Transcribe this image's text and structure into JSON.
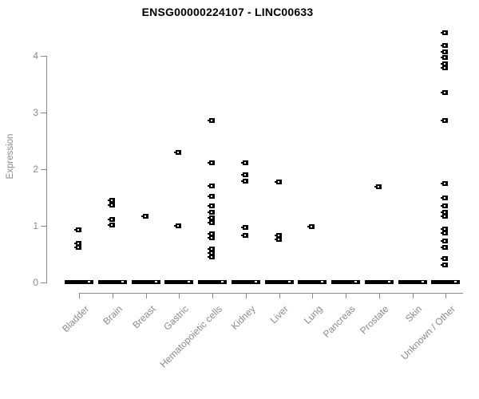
{
  "title": "ENSG00000224107 - LINC00633",
  "colors": {
    "point": "#000000",
    "axis": "#8a8a8a",
    "tick_label": "#8a8a8a",
    "title": "#000000",
    "background": "#ffffff"
  },
  "chart_data": {
    "type": "scatter",
    "title": "ENSG00000224107 - LINC00633",
    "xlabel": "",
    "ylabel": "Expression",
    "ylim": [
      0,
      4.5
    ],
    "y_ticks": [
      0,
      1,
      2,
      3,
      4
    ],
    "grid": false,
    "legend": false,
    "marker": "small-black-square-with-white-slot",
    "zero_note": "every category has a dense cluster of points at expression 0 rendered as a thick black dash",
    "categories": [
      "Bladder",
      "Brain",
      "Breast",
      "Gastric",
      "Hematopoietic cells",
      "Kidney",
      "Liver",
      "Lung",
      "Pancreas",
      "Prostate",
      "Skin",
      "Unknown / Other"
    ],
    "points": [
      {
        "category": "Bladder",
        "zero_cluster": true,
        "values": [
          0.93,
          0.69,
          0.63
        ]
      },
      {
        "category": "Brain",
        "zero_cluster": true,
        "values": [
          1.46,
          1.37,
          1.11,
          1.02
        ]
      },
      {
        "category": "Breast",
        "zero_cluster": true,
        "values": [
          1.18
        ]
      },
      {
        "category": "Gastric",
        "zero_cluster": true,
        "values": [
          2.3,
          1.0
        ]
      },
      {
        "category": "Hematopoietic cells",
        "zero_cluster": true,
        "values": [
          2.86,
          2.12,
          1.71,
          1.53,
          1.35,
          1.25,
          1.14,
          1.06,
          0.87,
          0.79,
          0.59,
          0.52,
          0.45
        ]
      },
      {
        "category": "Kidney",
        "zero_cluster": true,
        "values": [
          2.12,
          1.91,
          1.79,
          0.97,
          0.83
        ]
      },
      {
        "category": "Liver",
        "zero_cluster": true,
        "values": [
          1.78,
          0.84,
          0.76
        ]
      },
      {
        "category": "Lung",
        "zero_cluster": true,
        "values": [
          0.99
        ]
      },
      {
        "category": "Pancreas",
        "zero_cluster": true,
        "values": []
      },
      {
        "category": "Prostate",
        "zero_cluster": true,
        "values": [
          1.69
        ]
      },
      {
        "category": "Skin",
        "zero_cluster": true,
        "values": []
      },
      {
        "category": "Unknown / Other",
        "zero_cluster": true,
        "values": [
          4.41,
          4.19,
          4.08,
          3.98,
          3.86,
          3.79,
          3.35,
          2.86,
          1.75,
          1.5,
          1.35,
          1.24,
          1.17,
          0.95,
          0.88,
          0.74,
          0.62,
          0.43,
          0.31
        ]
      }
    ]
  }
}
